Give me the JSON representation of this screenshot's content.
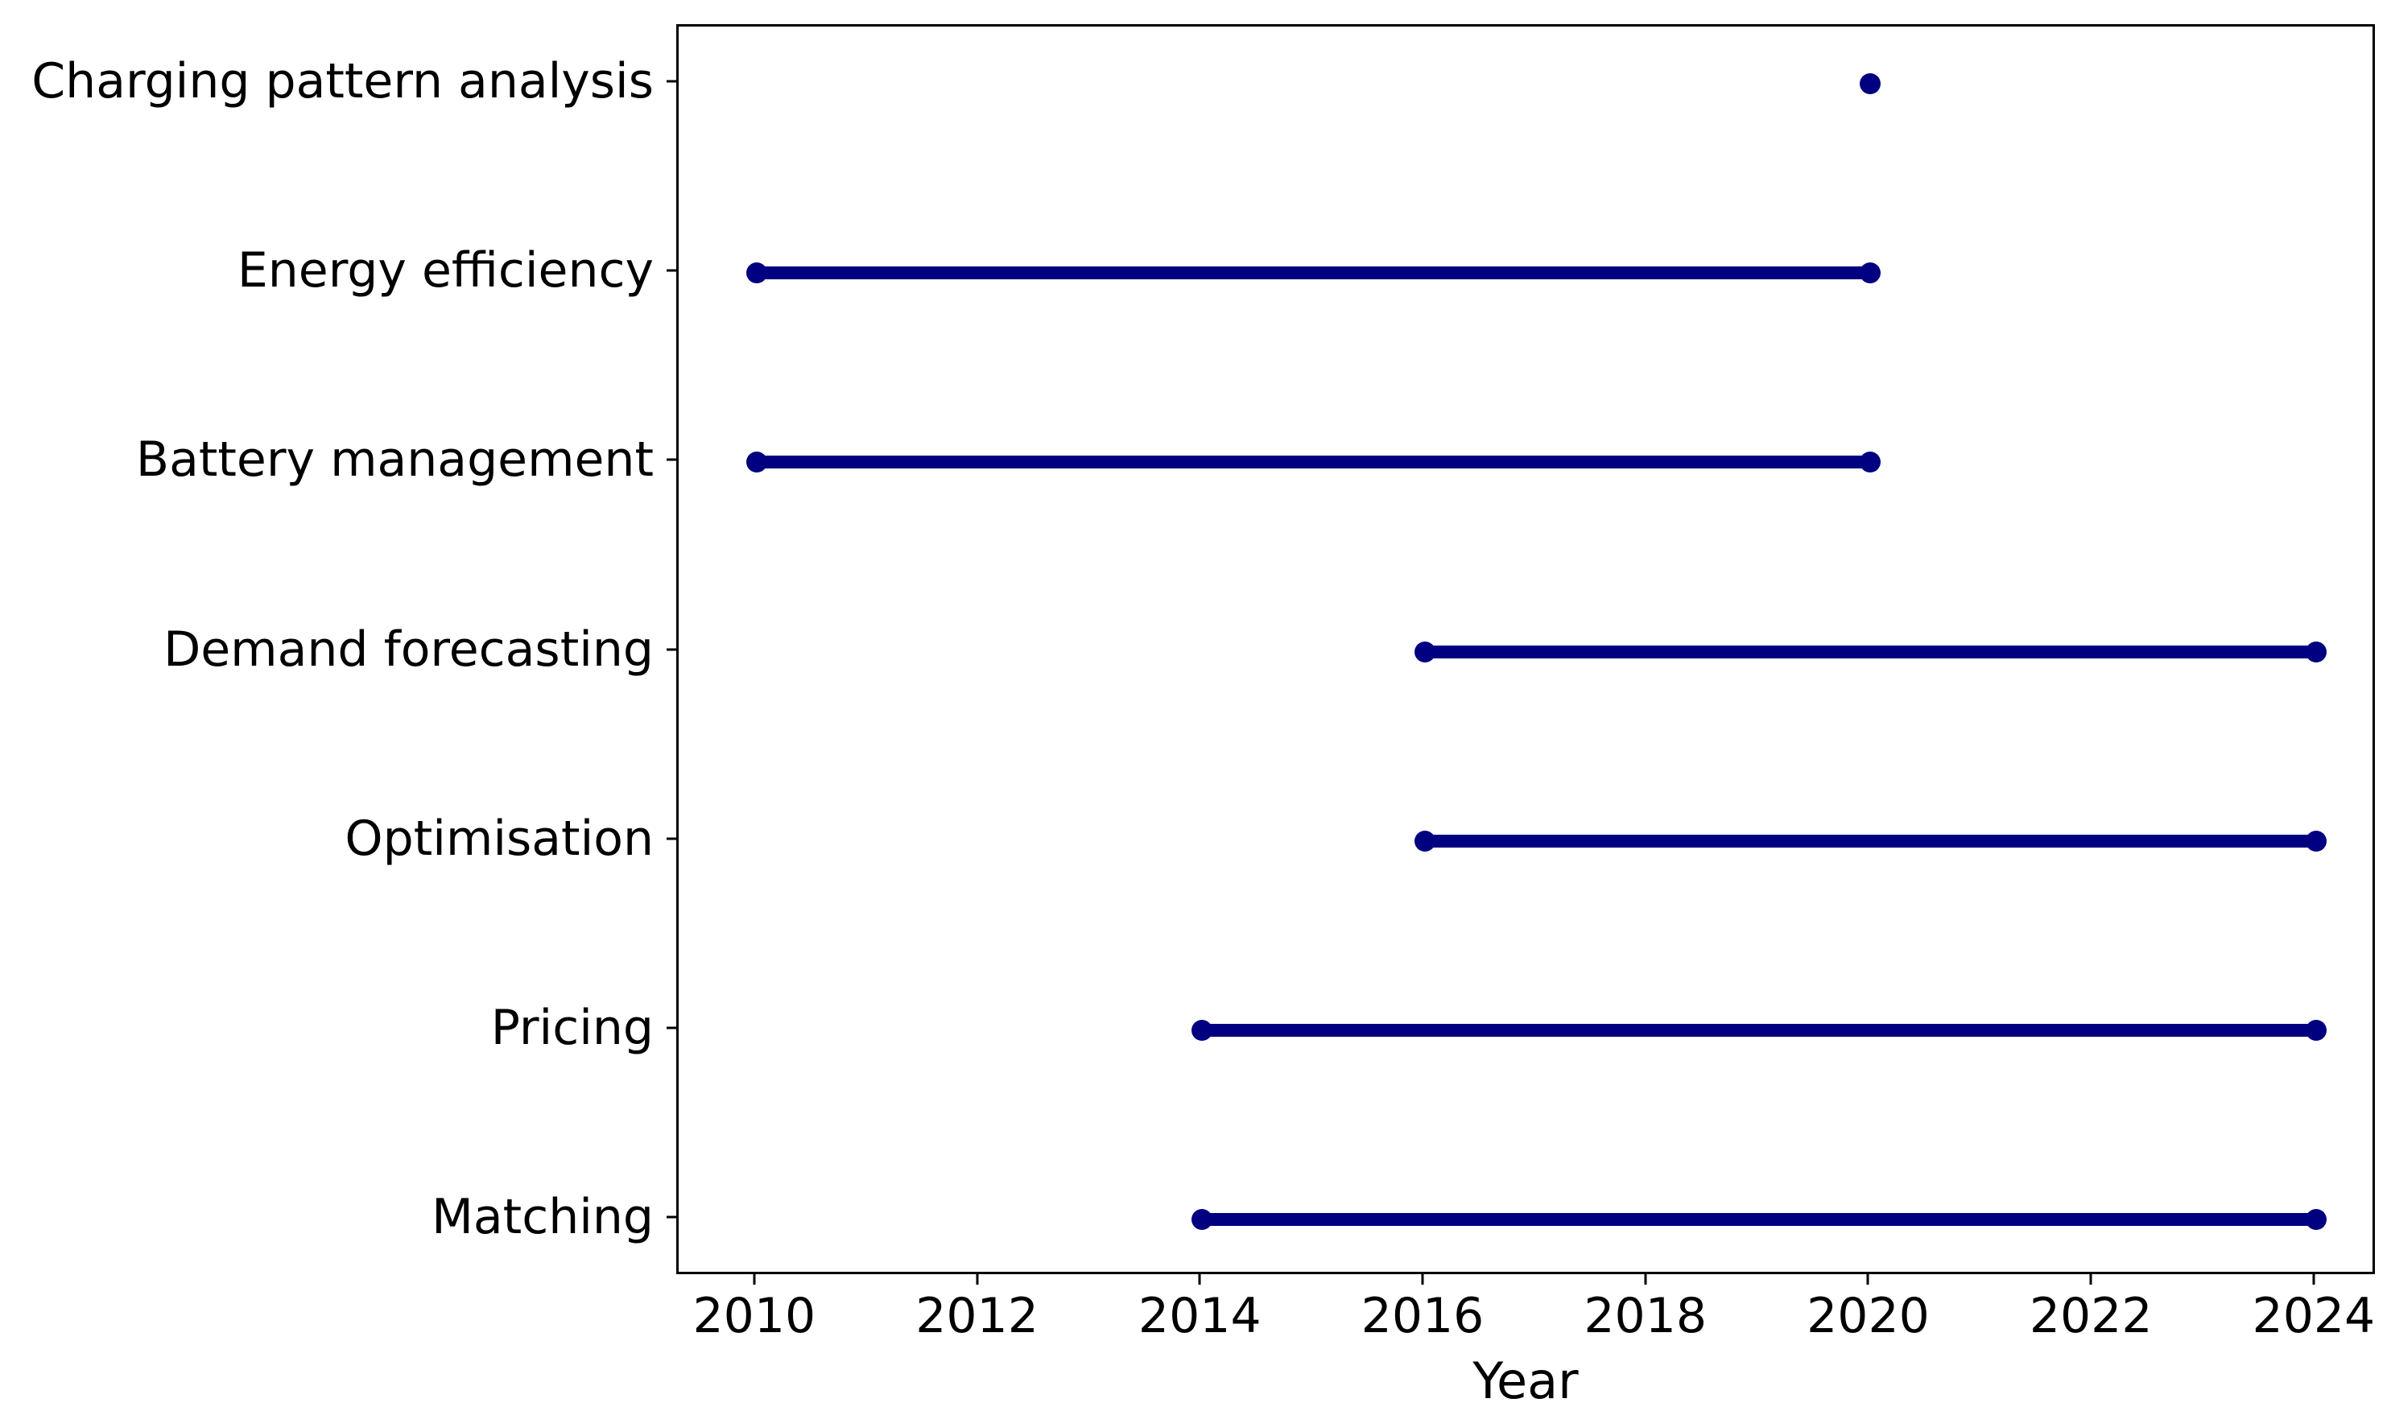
{
  "chart_data": {
    "type": "line",
    "subtype": "timeline-gantt",
    "title": "",
    "xlabel": "Year",
    "ylabel": "",
    "categories": [
      "Charging pattern analysis",
      "Energy efficiency",
      "Battery management",
      "Demand forecasting",
      "Optimisation",
      "Pricing",
      "Matching"
    ],
    "items": [
      {
        "label": "Charging pattern analysis",
        "start": 2020,
        "end": 2020
      },
      {
        "label": "Energy efficiency",
        "start": 2010,
        "end": 2020
      },
      {
        "label": "Battery management",
        "start": 2010,
        "end": 2020
      },
      {
        "label": "Demand forecasting",
        "start": 2016,
        "end": 2024
      },
      {
        "label": "Optimisation",
        "start": 2016,
        "end": 2024
      },
      {
        "label": "Pricing",
        "start": 2014,
        "end": 2024
      },
      {
        "label": "Matching",
        "start": 2014,
        "end": 2024
      }
    ],
    "xticks": [
      2010,
      2012,
      2014,
      2016,
      2018,
      2020,
      2022,
      2024
    ],
    "xlim": [
      2009.3,
      2024.55
    ],
    "grid": false,
    "legend": "none",
    "marker": "circle",
    "colors": {
      "line": "#000080",
      "marker": "#000080",
      "spine": "#000000",
      "text": "#000000",
      "background": "#ffffff"
    }
  }
}
